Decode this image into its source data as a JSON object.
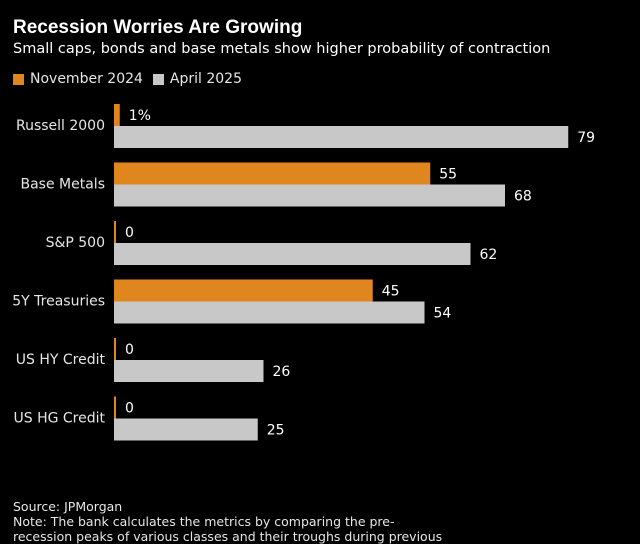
{
  "title": "Recession Worries Are Growing",
  "subtitle": "Small caps, bonds and base metals show higher probability of contraction",
  "colors": {
    "november_2024": "#e0861f",
    "april_2025": "#c8c8c8",
    "background": "#000000"
  },
  "footer": {
    "source": "Source: JPMorgan",
    "note_line1": "Note: The bank calculates the metrics by comparing the pre-",
    "note_line2": "recession peaks of various classes and their troughs during previous"
  },
  "chart_data": {
    "type": "bar",
    "orientation": "horizontal",
    "title": "Recession Worries Are Growing",
    "subtitle": "Small caps, bonds and base metals show higher probability of contraction",
    "categories": [
      "Russell 2000",
      "Base Metals",
      "S&P 500",
      "5Y Treasuries",
      "US HY Credit",
      "US HG Credit"
    ],
    "series": [
      {
        "name": "November 2024",
        "values": [
          1,
          55,
          0,
          45,
          0,
          0
        ],
        "labels": [
          "1%",
          "55",
          "0",
          "45",
          "0",
          "0"
        ]
      },
      {
        "name": "April 2025",
        "values": [
          79,
          68,
          62,
          54,
          26,
          25
        ],
        "labels": [
          "79",
          "68",
          "62",
          "54",
          "26",
          "25"
        ]
      }
    ],
    "xlim": [
      0,
      80
    ],
    "grid": false,
    "legend": "top-left"
  }
}
